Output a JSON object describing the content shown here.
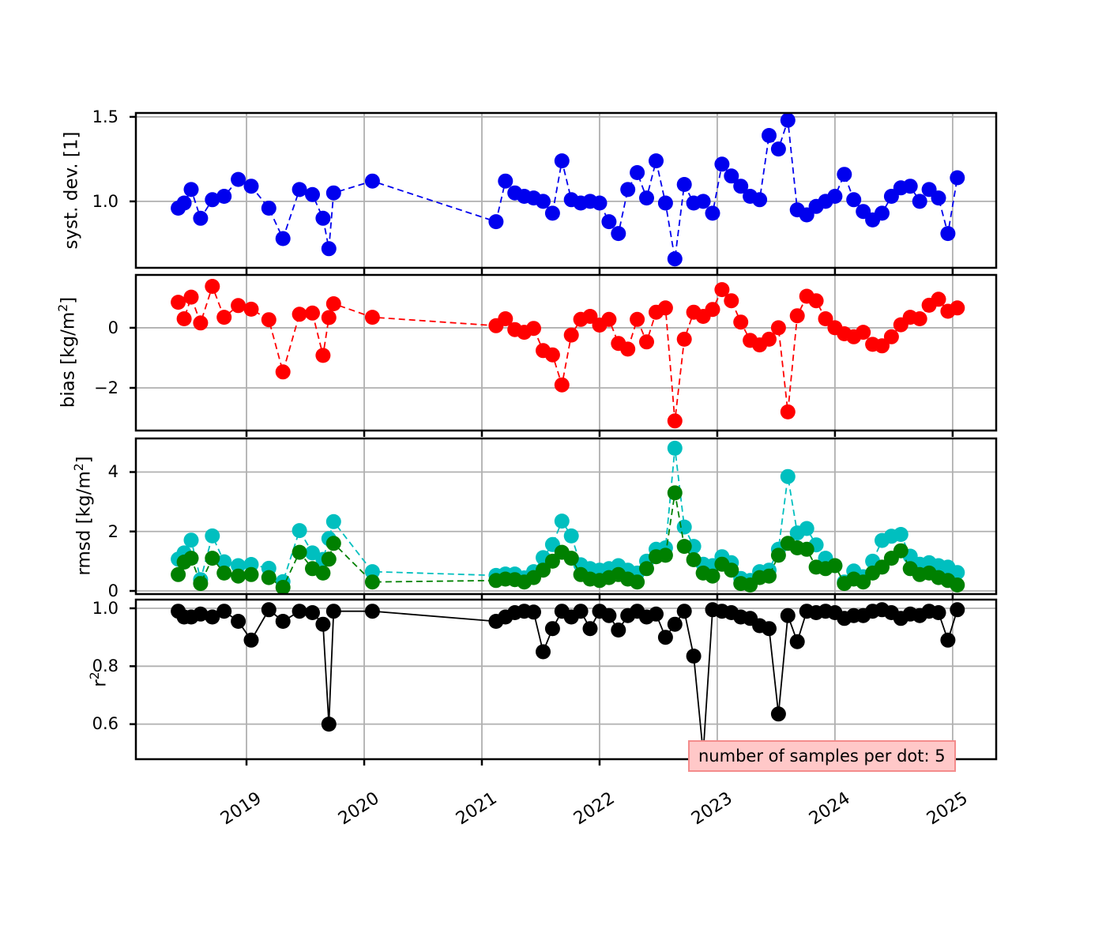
{
  "chart_data": {
    "type": "line",
    "title": "",
    "xlabel": "",
    "grid": true,
    "grid_color": "#b0b0b0",
    "xlim": [
      2018.06,
      2025.37
    ],
    "xticks": [
      2019,
      2020,
      2021,
      2022,
      2023,
      2024,
      2025
    ],
    "xtick_labels": [
      "2019",
      "2020",
      "2021",
      "2022",
      "2023",
      "2024",
      "2025"
    ],
    "x": [
      2018.42,
      2018.47,
      2018.53,
      2018.61,
      2018.71,
      2018.81,
      2018.93,
      2019.04,
      2019.19,
      2019.31,
      2019.45,
      2019.56,
      2019.65,
      2019.7,
      2019.74,
      2020.07,
      2021.12,
      2021.2,
      2021.28,
      2021.36,
      2021.44,
      2021.52,
      2021.6,
      2021.68,
      2021.76,
      2021.84,
      2021.92,
      2022.0,
      2022.08,
      2022.16,
      2022.24,
      2022.32,
      2022.4,
      2022.48,
      2022.56,
      2022.64,
      2022.72,
      2022.8,
      2022.88,
      2022.96,
      2023.04,
      2023.12,
      2023.2,
      2023.28,
      2023.36,
      2023.44,
      2023.52,
      2023.6,
      2023.68,
      2023.76,
      2023.84,
      2023.92,
      2024.0,
      2024.08,
      2024.16,
      2024.24,
      2024.32,
      2024.4,
      2024.48,
      2024.56,
      2024.64,
      2024.72,
      2024.8,
      2024.88,
      2024.96,
      2025.04
    ],
    "panels": [
      {
        "name": "syst-dev",
        "ylabel": "syst. dev. [1]",
        "ylabel_parts": {
          "pre": "syst. dev. [1]",
          "sup": "",
          "post": ""
        },
        "ylim": [
          0.607,
          1.523
        ],
        "yticks": [
          1.5,
          1.0
        ],
        "ytick_labels": [
          "1.5",
          "1.0"
        ],
        "series": [
          {
            "name": "syst_dev",
            "color": "#0000ee",
            "style": "dashed",
            "values": [
              0.96,
              0.99,
              1.07,
              0.9,
              1.01,
              1.03,
              1.13,
              1.09,
              0.96,
              0.78,
              1.07,
              1.04,
              0.9,
              0.72,
              1.05,
              1.12,
              0.88,
              1.12,
              1.05,
              1.03,
              1.02,
              1.0,
              0.93,
              1.24,
              1.01,
              0.99,
              1.0,
              0.99,
              0.88,
              0.81,
              1.07,
              1.17,
              1.02,
              1.24,
              0.99,
              0.66,
              1.1,
              0.99,
              1.0,
              0.93,
              1.22,
              1.15,
              1.09,
              1.03,
              1.01,
              1.39,
              1.31,
              1.48,
              0.95,
              0.92,
              0.97,
              1.0,
              1.03,
              1.16,
              1.01,
              0.94,
              0.89,
              0.93,
              1.03,
              1.08,
              1.09,
              1.0,
              1.07,
              1.02,
              0.81,
              1.14
            ]
          }
        ]
      },
      {
        "name": "bias",
        "ylabel": "bias [kg/m²]",
        "ylabel_parts": {
          "pre": "bias [kg/m",
          "sup": "2",
          "post": "]"
        },
        "ylim": [
          -3.42,
          1.76
        ],
        "yticks": [
          0,
          -2
        ],
        "ytick_labels": [
          "0",
          "−2"
        ],
        "series": [
          {
            "name": "bias",
            "color": "#ff0000",
            "style": "dashed",
            "values": [
              0.85,
              0.3,
              1.02,
              0.16,
              1.38,
              0.35,
              0.74,
              0.62,
              0.27,
              -1.47,
              0.45,
              0.49,
              -0.92,
              0.34,
              0.8,
              0.35,
              0.07,
              0.3,
              -0.06,
              -0.15,
              -0.02,
              -0.76,
              -0.9,
              -1.9,
              -0.24,
              0.28,
              0.38,
              0.09,
              0.28,
              -0.52,
              -0.71,
              0.28,
              -0.47,
              0.52,
              0.66,
              -3.1,
              -0.38,
              0.52,
              0.38,
              0.61,
              1.27,
              0.9,
              0.19,
              -0.42,
              -0.57,
              -0.38,
              0.0,
              -2.8,
              0.4,
              1.05,
              0.9,
              0.3,
              0.0,
              -0.2,
              -0.3,
              -0.15,
              -0.55,
              -0.6,
              -0.3,
              0.1,
              0.35,
              0.3,
              0.75,
              0.95,
              0.55,
              0.66
            ]
          }
        ]
      },
      {
        "name": "rmsd",
        "ylabel": "rmsd [kg/m²]",
        "ylabel_parts": {
          "pre": "rmsd [kg/m",
          "sup": "2",
          "post": "]"
        },
        "ylim": [
          -0.106,
          5.13
        ],
        "yticks": [
          4,
          2,
          0
        ],
        "ytick_labels": [
          "4",
          "2",
          "0"
        ],
        "series": [
          {
            "name": "rmsd_total",
            "color": "#00bfbf",
            "style": "dashed",
            "values": [
              1.07,
              1.28,
              1.71,
              0.38,
              1.85,
              0.98,
              0.85,
              0.89,
              0.76,
              0.31,
              2.03,
              1.28,
              1.06,
              1.76,
              2.33,
              0.65,
              0.52,
              0.57,
              0.57,
              0.44,
              0.65,
              1.12,
              1.56,
              2.35,
              1.85,
              0.88,
              0.75,
              0.7,
              0.75,
              0.85,
              0.7,
              0.6,
              1.0,
              1.4,
              1.45,
              4.8,
              2.15,
              1.5,
              0.9,
              0.85,
              1.15,
              0.95,
              0.42,
              0.35,
              0.65,
              0.7,
              1.4,
              3.85,
              1.95,
              2.1,
              1.55,
              1.1,
              0.85,
              0.3,
              0.67,
              0.48,
              1.0,
              1.7,
              1.84,
              1.9,
              1.17,
              0.9,
              0.95,
              0.85,
              0.8,
              0.62
            ]
          },
          {
            "name": "rmsd_systematic",
            "color": "#008000",
            "style": "dashed",
            "values": [
              0.55,
              0.97,
              1.1,
              0.25,
              1.1,
              0.6,
              0.5,
              0.55,
              0.45,
              0.12,
              1.3,
              0.75,
              0.6,
              1.07,
              1.6,
              0.3,
              0.35,
              0.4,
              0.38,
              0.3,
              0.45,
              0.7,
              1.0,
              1.3,
              1.1,
              0.55,
              0.4,
              0.35,
              0.45,
              0.55,
              0.4,
              0.3,
              0.75,
              1.15,
              1.2,
              3.3,
              1.5,
              1.05,
              0.6,
              0.5,
              0.9,
              0.7,
              0.25,
              0.2,
              0.45,
              0.5,
              1.2,
              1.6,
              1.45,
              1.4,
              0.8,
              0.75,
              0.85,
              0.25,
              0.4,
              0.3,
              0.6,
              0.8,
              1.1,
              1.35,
              0.75,
              0.55,
              0.6,
              0.45,
              0.35,
              0.2
            ]
          }
        ]
      },
      {
        "name": "r2",
        "ylabel": "r²",
        "ylabel_parts": {
          "pre": "r",
          "sup": "2",
          "post": ""
        },
        "ylim": [
          0.479,
          1.03
        ],
        "yticks": [
          1.0,
          0.8,
          0.6
        ],
        "ytick_labels": [
          "1.0",
          "0.8",
          "0.6"
        ],
        "series": [
          {
            "name": "r_squared",
            "color": "#000000",
            "style": "solid",
            "values": [
              0.99,
              0.97,
              0.97,
              0.98,
              0.97,
              0.99,
              0.955,
              0.89,
              0.995,
              0.955,
              0.99,
              0.985,
              0.945,
              0.6,
              0.99,
              0.99,
              0.955,
              0.97,
              0.985,
              0.99,
              0.987,
              0.85,
              0.93,
              0.99,
              0.97,
              0.99,
              0.93,
              0.99,
              0.975,
              0.925,
              0.975,
              0.99,
              0.97,
              0.98,
              0.9,
              0.945,
              0.99,
              0.835,
              0.5,
              0.995,
              0.99,
              0.985,
              0.97,
              0.965,
              0.94,
              0.93,
              0.635,
              0.975,
              0.885,
              0.99,
              0.985,
              0.99,
              0.985,
              0.965,
              0.975,
              0.975,
              0.99,
              0.995,
              0.985,
              0.965,
              0.98,
              0.975,
              0.99,
              0.985,
              0.89,
              0.995
            ]
          }
        ]
      }
    ],
    "annotation": {
      "text": "number of samples per dot: 5",
      "bg": "#ffc8c8",
      "border": "#f48c8c"
    },
    "legend": "none"
  }
}
